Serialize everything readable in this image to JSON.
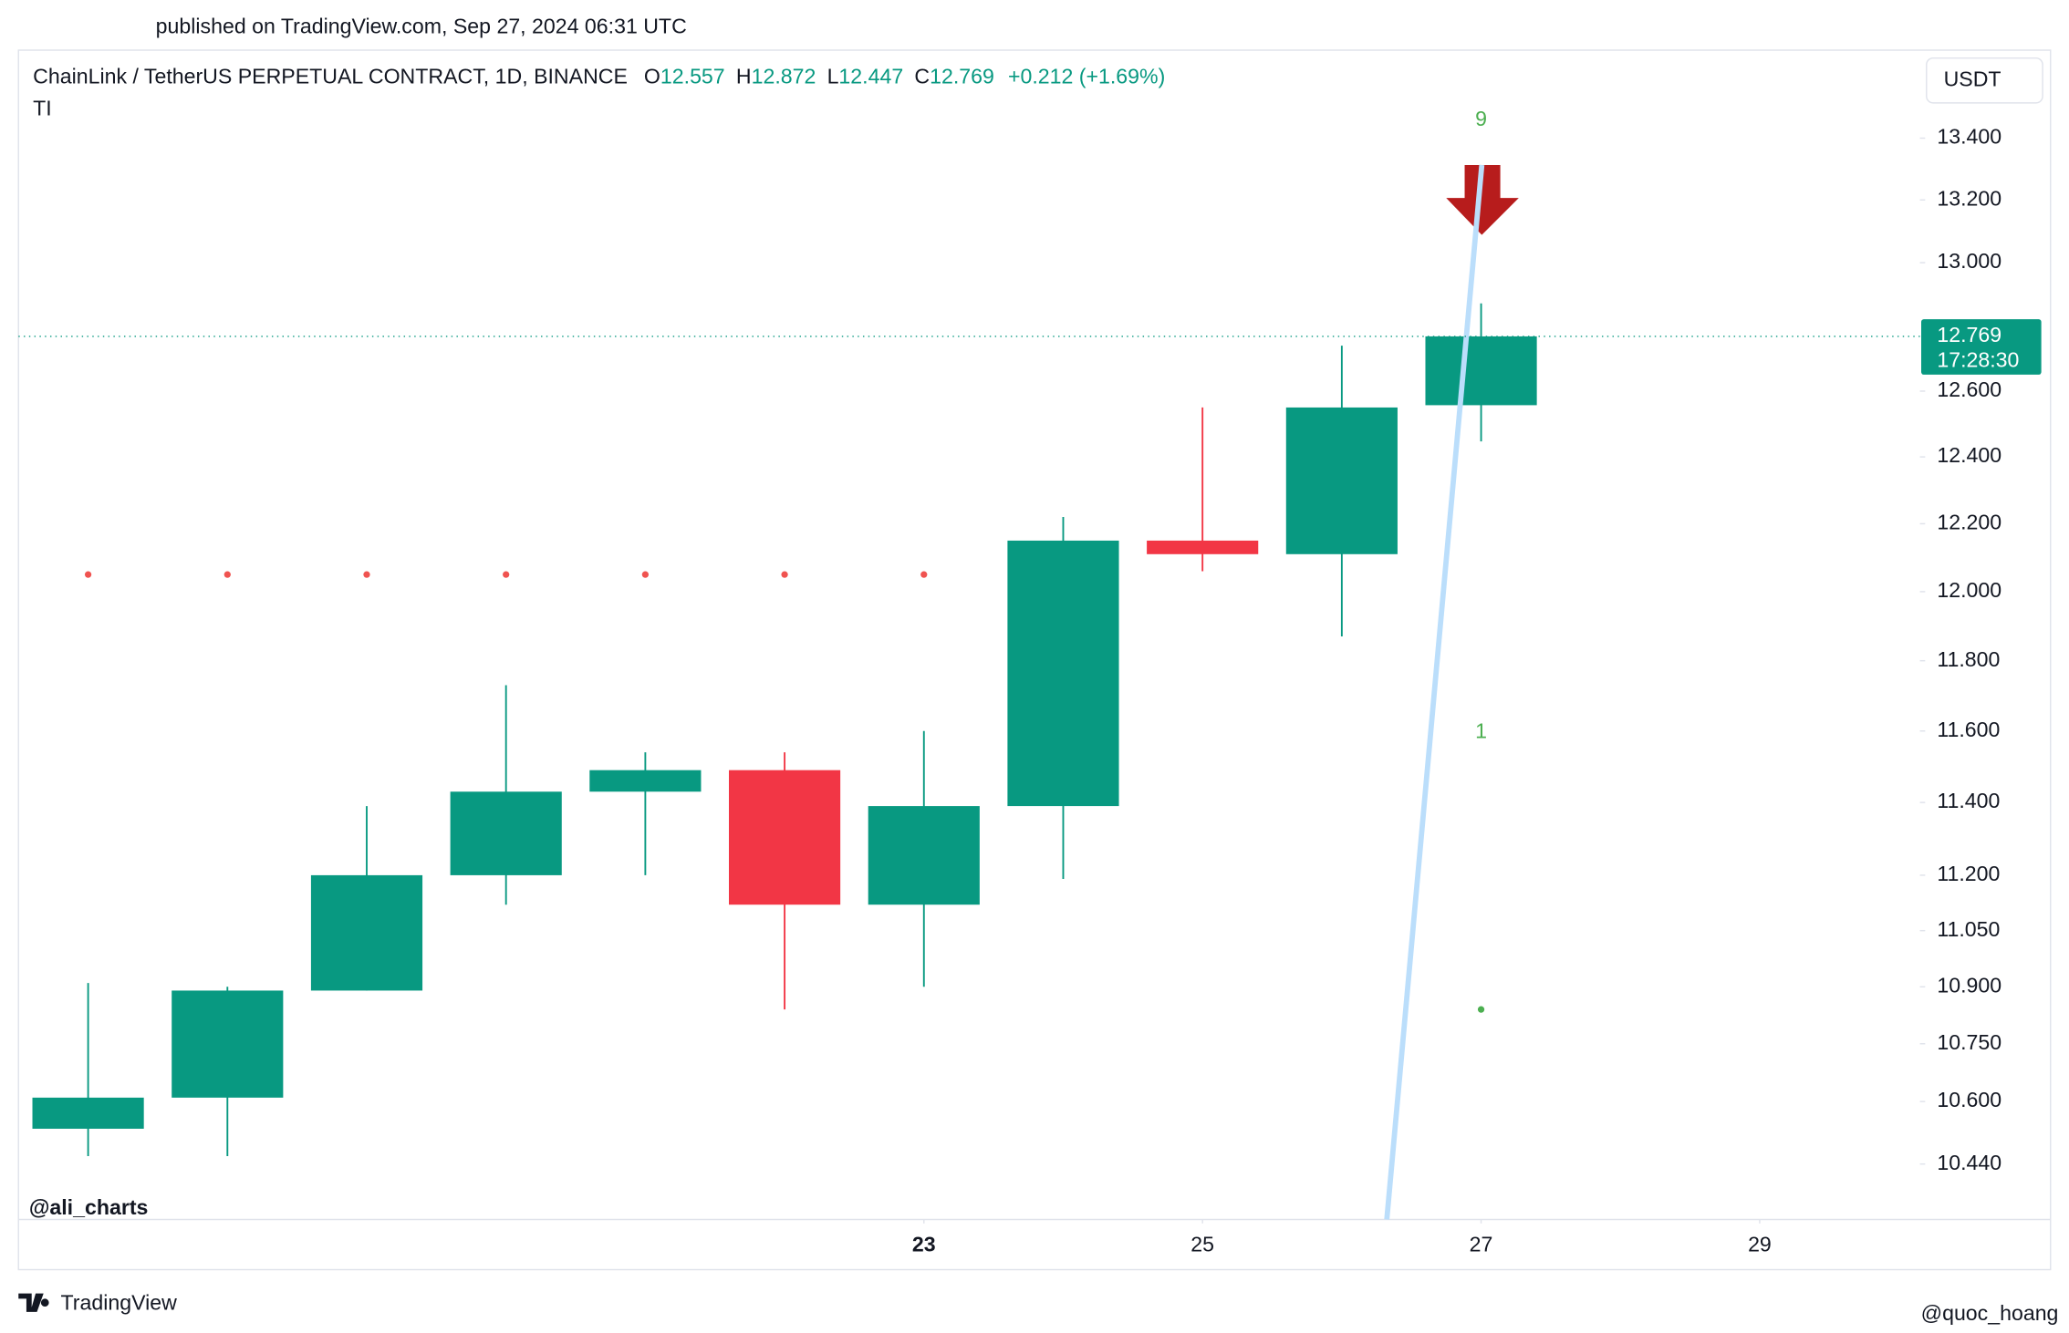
{
  "published": "published on TradingView.com, Sep 27, 2024 06:31 UTC",
  "symbol_line": "ChainLink / TetherUS PERPETUAL CONTRACT, 1D, BINANCE",
  "ohlc": {
    "open_prefix": "O",
    "open": 12.557,
    "high_prefix": "H",
    "high": 12.872,
    "low_prefix": "L",
    "low": 12.447,
    "close_prefix": "C",
    "close": 12.769,
    "change": "+0.212 (+1.69%)"
  },
  "indicator_name": "TI",
  "currency_button": "USDT",
  "last_price": 12.769,
  "countdown": "17:28:30",
  "watermark": "@ali_charts",
  "brand": "TradingView",
  "corner_watermark": "@quoc_hoang",
  "chart_data": {
    "type": "candlestick",
    "x": [
      17,
      18,
      19,
      20,
      21,
      22,
      23,
      24,
      25,
      26,
      27
    ],
    "open": [
      10.53,
      10.61,
      10.89,
      11.2,
      11.43,
      11.49,
      11.12,
      11.39,
      12.15,
      12.11,
      12.557
    ],
    "high": [
      10.91,
      10.9,
      11.39,
      11.73,
      11.54,
      11.54,
      11.6,
      12.22,
      12.55,
      12.74,
      12.872
    ],
    "low": [
      10.46,
      10.46,
      10.89,
      11.12,
      11.2,
      10.84,
      10.9,
      11.19,
      12.06,
      11.87,
      12.447
    ],
    "close": [
      10.61,
      10.89,
      11.2,
      11.43,
      11.49,
      11.12,
      11.39,
      12.15,
      12.11,
      12.55,
      12.769
    ],
    "up_color": "#089981",
    "down_color": "#f23645",
    "series": [
      {
        "name": "TD sell setup",
        "color": "#f05350",
        "values": [
          12.05,
          12.05,
          12.05,
          12.05,
          12.05,
          12.05,
          12.05,
          null,
          null,
          null,
          null
        ]
      },
      {
        "name": "TD buy setup",
        "color": "#4caf50",
        "values": [
          null,
          null,
          null,
          null,
          null,
          null,
          null,
          null,
          null,
          null,
          10.84
        ]
      }
    ],
    "annotations": [
      "9",
      "1"
    ],
    "log_scale": true,
    "grid": false,
    "xlim": [
      16.5,
      30.15
    ],
    "xticks": [
      23,
      25,
      27,
      29
    ],
    "ylim": [
      10.3,
      13.69
    ],
    "yticks": [
      {
        "value": 13.4,
        "label": "13.400"
      },
      {
        "value": 13.2,
        "label": "13.200"
      },
      {
        "value": 13.0,
        "label": "13.000"
      },
      {
        "value": 12.6,
        "label": "12.600"
      },
      {
        "value": 12.4,
        "label": "12.400"
      },
      {
        "value": 12.2,
        "label": "12.200"
      },
      {
        "value": 12.0,
        "label": "12.000"
      },
      {
        "value": 11.8,
        "label": "11.800"
      },
      {
        "value": 11.6,
        "label": "11.600"
      },
      {
        "value": 11.4,
        "label": "11.400"
      },
      {
        "value": 11.2,
        "label": "11.200"
      },
      {
        "value": 11.05,
        "label": "11.050"
      },
      {
        "value": 10.9,
        "label": "10.900"
      },
      {
        "value": 10.75,
        "label": "10.750"
      },
      {
        "value": 10.6,
        "label": "10.600"
      },
      {
        "value": 10.44,
        "label": "10.440"
      }
    ]
  }
}
